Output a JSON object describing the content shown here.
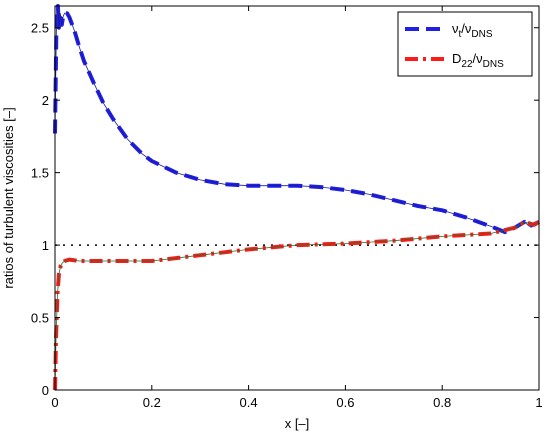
{
  "chart_data": {
    "type": "line",
    "title": "",
    "xlabel": "x [–]",
    "ylabel": "ratios of turbulent viscosities [–]",
    "xlim": [
      0,
      1
    ],
    "ylim": [
      0,
      2.65
    ],
    "x_ticks": [
      0,
      0.2,
      0.4,
      0.6,
      0.8,
      1
    ],
    "x_tick_labels": [
      "0",
      "0.2",
      "0.4",
      "0.6",
      "0.8",
      "1"
    ],
    "y_ticks": [
      0,
      0.5,
      1,
      1.5,
      2,
      2.5
    ],
    "y_tick_labels": [
      "0",
      "0.5",
      "1",
      "1.5",
      "2",
      "2.5"
    ],
    "grid": false,
    "legend_position": "top-right",
    "legend": [
      {
        "main": "ν",
        "sub1": "t",
        "mid": "/ν",
        "sub2": "DNS",
        "series": "nu_t"
      },
      {
        "main": "D",
        "sub1": "22",
        "mid": "/ν",
        "sub2": "DNS",
        "series": "D22"
      }
    ],
    "reference_line": {
      "y": 1,
      "style": "dotted",
      "color": "#000000"
    },
    "series": [
      {
        "key": "nu_t",
        "style": "dashed",
        "color": "#1f1fe6",
        "x": [
          0.0,
          0.003,
          0.006,
          0.008,
          0.011,
          0.014,
          0.017,
          0.02,
          0.025,
          0.03,
          0.04,
          0.05,
          0.06,
          0.08,
          0.1,
          0.12,
          0.15,
          0.18,
          0.2,
          0.25,
          0.3,
          0.35,
          0.4,
          0.45,
          0.5,
          0.55,
          0.6,
          0.65,
          0.7,
          0.75,
          0.8,
          0.85,
          0.9,
          0.93,
          0.95,
          0.97,
          0.98,
          1.0
        ],
        "y": [
          1.77,
          2.55,
          2.65,
          2.5,
          2.6,
          2.52,
          2.58,
          2.6,
          2.6,
          2.57,
          2.48,
          2.37,
          2.27,
          2.12,
          1.98,
          1.87,
          1.73,
          1.63,
          1.58,
          1.5,
          1.45,
          1.42,
          1.41,
          1.41,
          1.41,
          1.4,
          1.38,
          1.35,
          1.31,
          1.27,
          1.24,
          1.19,
          1.13,
          1.09,
          1.12,
          1.16,
          1.13,
          1.16
        ]
      },
      {
        "key": "D22",
        "style": "dashdot",
        "color": "#ff1a1a",
        "x": [
          0.0,
          0.002,
          0.005,
          0.008,
          0.012,
          0.016,
          0.02,
          0.03,
          0.05,
          0.1,
          0.2,
          0.3,
          0.4,
          0.5,
          0.6,
          0.7,
          0.8,
          0.9,
          0.95,
          0.97,
          0.99,
          1.0
        ],
        "y": [
          0.0,
          0.35,
          0.65,
          0.8,
          0.86,
          0.88,
          0.89,
          0.9,
          0.89,
          0.89,
          0.89,
          0.93,
          0.97,
          1.0,
          1.01,
          1.03,
          1.06,
          1.08,
          1.12,
          1.16,
          1.14,
          1.16
        ]
      }
    ]
  }
}
